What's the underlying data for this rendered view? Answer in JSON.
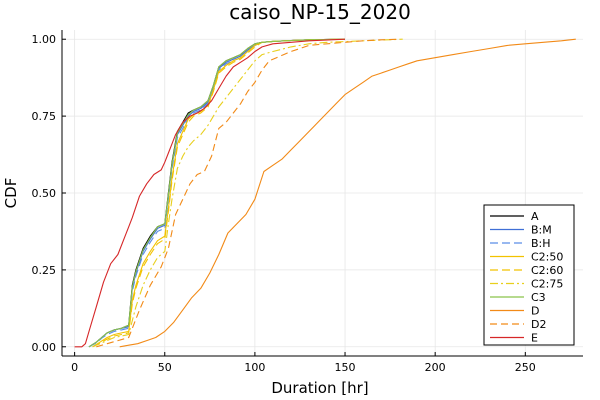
{
  "chart_data": {
    "type": "line",
    "title": "caiso_NP-15_2020",
    "xlabel": "Duration [hr]",
    "ylabel": "CDF",
    "xlim": [
      -7,
      282
    ],
    "ylim": [
      -0.03,
      1.03
    ],
    "xticks": [
      0,
      50,
      100,
      150,
      200,
      250
    ],
    "yticks": [
      0.0,
      0.25,
      0.5,
      0.75,
      1.0
    ],
    "xtick_labels": [
      "0",
      "50",
      "100",
      "150",
      "200",
      "250"
    ],
    "ytick_labels": [
      "0.00",
      "0.25",
      "0.50",
      "0.75",
      "1.00"
    ],
    "grid": true,
    "legend_position": "bottom-right",
    "series": [
      {
        "name": "A",
        "color": "#000000",
        "dash": "solid",
        "x": [
          8,
          12,
          15,
          18,
          22,
          26,
          30,
          32,
          34,
          38,
          42,
          46,
          50,
          52,
          54,
          57,
          60,
          63,
          66,
          70,
          74,
          77,
          80,
          84,
          88,
          92,
          96,
          100,
          104,
          110,
          120,
          130,
          150
        ],
        "y": [
          0,
          0.015,
          0.03,
          0.045,
          0.055,
          0.06,
          0.07,
          0.2,
          0.25,
          0.32,
          0.36,
          0.39,
          0.4,
          0.5,
          0.6,
          0.7,
          0.73,
          0.76,
          0.77,
          0.78,
          0.8,
          0.85,
          0.91,
          0.93,
          0.94,
          0.95,
          0.97,
          0.985,
          0.99,
          0.993,
          0.996,
          0.998,
          1.0
        ]
      },
      {
        "name": "B:M",
        "color": "#3f6fd6",
        "dash": "solid",
        "x": [
          8,
          12,
          15,
          18,
          22,
          26,
          30,
          32,
          34,
          38,
          42,
          46,
          50,
          52,
          54,
          57,
          60,
          63,
          66,
          70,
          74,
          77,
          80,
          84,
          88,
          92,
          96,
          100,
          104,
          110,
          120,
          130,
          150
        ],
        "y": [
          0,
          0.015,
          0.03,
          0.045,
          0.055,
          0.06,
          0.065,
          0.19,
          0.24,
          0.31,
          0.35,
          0.385,
          0.395,
          0.49,
          0.59,
          0.69,
          0.72,
          0.75,
          0.765,
          0.775,
          0.795,
          0.845,
          0.905,
          0.925,
          0.935,
          0.945,
          0.965,
          0.98,
          0.99,
          0.993,
          0.996,
          0.998,
          1.0
        ]
      },
      {
        "name": "B:H",
        "color": "#5a8ee6",
        "dash": "8,4",
        "x": [
          8,
          12,
          15,
          18,
          22,
          26,
          30,
          32,
          34,
          38,
          42,
          46,
          50,
          52,
          54,
          57,
          60,
          63,
          66,
          70,
          74,
          77,
          80,
          84,
          88,
          92,
          96,
          100,
          104,
          110,
          120,
          130,
          150
        ],
        "y": [
          0,
          0.012,
          0.028,
          0.04,
          0.05,
          0.055,
          0.06,
          0.18,
          0.23,
          0.3,
          0.34,
          0.375,
          0.385,
          0.48,
          0.58,
          0.68,
          0.71,
          0.745,
          0.76,
          0.77,
          0.79,
          0.84,
          0.9,
          0.92,
          0.93,
          0.94,
          0.96,
          0.98,
          0.99,
          0.993,
          0.996,
          0.998,
          1.0
        ]
      },
      {
        "name": "C2:50",
        "color": "#f2c200",
        "dash": "solid",
        "x": [
          10,
          14,
          18,
          22,
          26,
          30,
          32,
          34,
          38,
          42,
          46,
          50,
          52,
          54,
          57,
          60,
          63,
          66,
          70,
          74,
          77,
          80,
          84,
          88,
          92,
          96,
          100,
          104,
          110,
          120,
          130,
          150
        ],
        "y": [
          0,
          0.015,
          0.03,
          0.04,
          0.045,
          0.05,
          0.15,
          0.2,
          0.27,
          0.31,
          0.345,
          0.36,
          0.45,
          0.55,
          0.66,
          0.7,
          0.74,
          0.755,
          0.765,
          0.785,
          0.835,
          0.895,
          0.915,
          0.93,
          0.94,
          0.96,
          0.98,
          0.99,
          0.993,
          0.996,
          0.998,
          1.0
        ]
      },
      {
        "name": "C2:60",
        "color": "#f2c200",
        "dash": "8,4",
        "x": [
          10,
          14,
          18,
          22,
          26,
          30,
          32,
          34,
          38,
          42,
          46,
          50,
          52,
          54,
          57,
          60,
          63,
          66,
          70,
          74,
          77,
          80,
          84,
          88,
          92,
          96,
          100,
          104,
          110,
          120,
          130,
          150
        ],
        "y": [
          0,
          0.012,
          0.025,
          0.035,
          0.04,
          0.045,
          0.14,
          0.19,
          0.26,
          0.3,
          0.335,
          0.35,
          0.44,
          0.54,
          0.65,
          0.69,
          0.73,
          0.75,
          0.76,
          0.78,
          0.83,
          0.89,
          0.91,
          0.925,
          0.935,
          0.955,
          0.975,
          0.99,
          0.993,
          0.996,
          0.998,
          1.0
        ]
      },
      {
        "name": "C2:75",
        "color": "#e8cf1c",
        "dash": "8,3,2,3",
        "x": [
          10,
          14,
          18,
          22,
          26,
          30,
          34,
          38,
          42,
          46,
          50,
          52,
          54,
          57,
          60,
          63,
          66,
          70,
          74,
          77,
          80,
          84,
          88,
          92,
          96,
          100,
          104,
          110,
          120,
          130,
          140,
          160,
          182
        ],
        "y": [
          0,
          0.01,
          0.02,
          0.03,
          0.035,
          0.04,
          0.13,
          0.2,
          0.25,
          0.29,
          0.31,
          0.4,
          0.48,
          0.58,
          0.62,
          0.65,
          0.67,
          0.69,
          0.72,
          0.75,
          0.78,
          0.81,
          0.84,
          0.87,
          0.9,
          0.93,
          0.95,
          0.96,
          0.975,
          0.985,
          0.99,
          0.995,
          1.0
        ]
      },
      {
        "name": "C3",
        "color": "#8bc34a",
        "dash": "solid",
        "x": [
          8,
          12,
          15,
          18,
          22,
          26,
          30,
          32,
          34,
          38,
          42,
          46,
          50,
          52,
          54,
          57,
          60,
          63,
          66,
          70,
          74,
          77,
          80,
          84,
          88,
          92,
          96,
          100,
          104,
          110,
          120,
          130,
          150
        ],
        "y": [
          0,
          0.015,
          0.03,
          0.045,
          0.055,
          0.06,
          0.07,
          0.195,
          0.245,
          0.315,
          0.355,
          0.39,
          0.4,
          0.495,
          0.595,
          0.695,
          0.725,
          0.755,
          0.77,
          0.78,
          0.8,
          0.85,
          0.91,
          0.93,
          0.94,
          0.95,
          0.97,
          0.985,
          0.99,
          0.993,
          0.996,
          0.998,
          1.0
        ]
      },
      {
        "name": "D",
        "color": "#f28a17",
        "dash": "solid",
        "x": [
          25,
          30,
          35,
          40,
          45,
          50,
          55,
          60,
          65,
          70,
          75,
          80,
          85,
          90,
          95,
          100,
          105,
          110,
          115,
          120,
          125,
          130,
          135,
          140,
          145,
          150,
          155,
          160,
          165,
          170,
          175,
          180,
          185,
          190,
          200,
          210,
          220,
          230,
          240,
          250,
          260,
          270,
          278
        ],
        "y": [
          0,
          0.005,
          0.01,
          0.02,
          0.03,
          0.05,
          0.08,
          0.12,
          0.16,
          0.19,
          0.24,
          0.3,
          0.37,
          0.4,
          0.43,
          0.48,
          0.57,
          0.59,
          0.61,
          0.64,
          0.67,
          0.7,
          0.73,
          0.76,
          0.79,
          0.82,
          0.84,
          0.86,
          0.88,
          0.89,
          0.9,
          0.91,
          0.92,
          0.93,
          0.94,
          0.95,
          0.96,
          0.97,
          0.98,
          0.985,
          0.99,
          0.995,
          1.0
        ]
      },
      {
        "name": "D2",
        "color": "#f28a17",
        "dash": "7,4",
        "x": [
          12,
          18,
          24,
          30,
          36,
          42,
          48,
          52,
          56,
          60,
          64,
          68,
          72,
          76,
          80,
          84,
          88,
          92,
          96,
          100,
          104,
          108,
          112,
          116,
          120,
          125,
          130,
          140,
          150,
          160,
          170,
          180
        ],
        "y": [
          0,
          0.01,
          0.02,
          0.03,
          0.12,
          0.2,
          0.26,
          0.32,
          0.43,
          0.48,
          0.53,
          0.56,
          0.57,
          0.62,
          0.71,
          0.73,
          0.76,
          0.79,
          0.83,
          0.86,
          0.9,
          0.93,
          0.94,
          0.95,
          0.96,
          0.97,
          0.98,
          0.985,
          0.99,
          0.995,
          0.998,
          1.0
        ]
      },
      {
        "name": "E",
        "color": "#d62728",
        "dash": "solid",
        "x": [
          0,
          4,
          6,
          8,
          12,
          16,
          20,
          24,
          28,
          32,
          36,
          40,
          44,
          48,
          50,
          52,
          54,
          56,
          58,
          60,
          64,
          68,
          72,
          76,
          80,
          84,
          88,
          92,
          96,
          100,
          104,
          110,
          120,
          130,
          150
        ],
        "y": [
          0,
          0,
          0.01,
          0.05,
          0.13,
          0.21,
          0.27,
          0.3,
          0.36,
          0.42,
          0.49,
          0.53,
          0.56,
          0.575,
          0.6,
          0.63,
          0.66,
          0.69,
          0.71,
          0.73,
          0.75,
          0.76,
          0.775,
          0.8,
          0.84,
          0.88,
          0.91,
          0.925,
          0.94,
          0.96,
          0.975,
          0.985,
          0.99,
          0.995,
          1.0
        ]
      }
    ]
  }
}
